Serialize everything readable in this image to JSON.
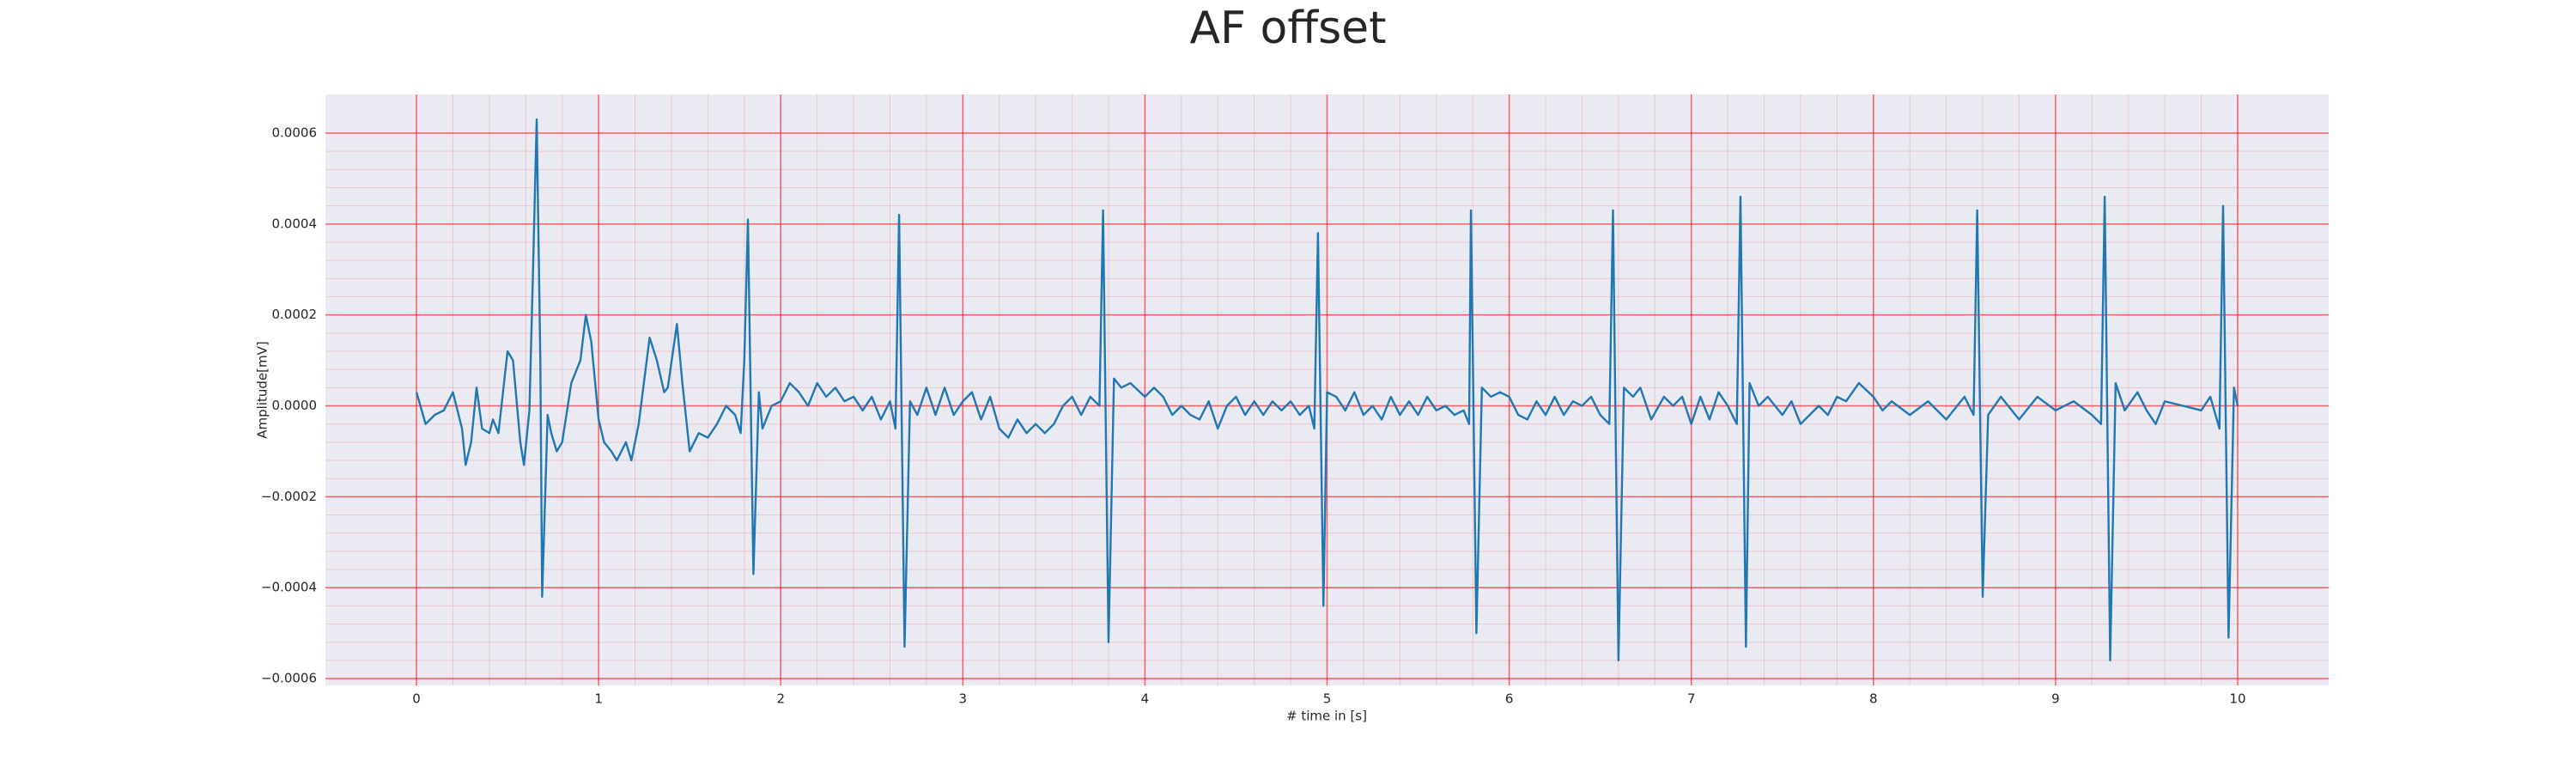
{
  "chart_data": {
    "type": "line",
    "title": "AF offset",
    "xlabel": "# time in [s]",
    "ylabel": "Amplitude[mV]",
    "x": [
      0,
      0.05,
      0.1,
      0.15,
      0.2,
      0.25,
      0.27,
      0.3,
      0.33,
      0.36,
      0.4,
      0.42,
      0.45,
      0.5,
      0.53,
      0.57,
      0.59,
      0.62,
      0.64,
      0.66,
      0.68,
      0.69,
      0.72,
      0.74,
      0.77,
      0.8,
      0.85,
      0.9,
      0.93,
      0.96,
      1.0,
      1.03,
      1.07,
      1.1,
      1.15,
      1.18,
      1.22,
      1.28,
      1.32,
      1.36,
      1.38,
      1.43,
      1.46,
      1.5,
      1.55,
      1.6,
      1.65,
      1.7,
      1.75,
      1.78,
      1.8,
      1.82,
      1.85,
      1.88,
      1.9,
      1.95,
      2.0,
      2.05,
      2.1,
      2.15,
      2.2,
      2.25,
      2.3,
      2.35,
      2.4,
      2.45,
      2.5,
      2.55,
      2.6,
      2.63,
      2.65,
      2.68,
      2.71,
      2.75,
      2.8,
      2.85,
      2.9,
      2.95,
      3.0,
      3.05,
      3.1,
      3.15,
      3.2,
      3.25,
      3.3,
      3.35,
      3.4,
      3.45,
      3.5,
      3.55,
      3.6,
      3.65,
      3.7,
      3.75,
      3.77,
      3.8,
      3.83,
      3.87,
      3.92,
      4.0,
      4.05,
      4.1,
      4.15,
      4.2,
      4.25,
      4.3,
      4.35,
      4.4,
      4.45,
      4.5,
      4.55,
      4.6,
      4.65,
      4.7,
      4.75,
      4.8,
      4.85,
      4.9,
      4.93,
      4.95,
      4.98,
      5.0,
      5.05,
      5.1,
      5.15,
      5.2,
      5.25,
      5.3,
      5.35,
      5.4,
      5.45,
      5.5,
      5.55,
      5.6,
      5.65,
      5.7,
      5.75,
      5.78,
      5.79,
      5.82,
      5.85,
      5.9,
      5.95,
      6.0,
      6.05,
      6.1,
      6.15,
      6.2,
      6.25,
      6.3,
      6.35,
      6.4,
      6.45,
      6.5,
      6.55,
      6.57,
      6.6,
      6.63,
      6.68,
      6.72,
      6.78,
      6.85,
      6.9,
      6.95,
      7.0,
      7.05,
      7.1,
      7.15,
      7.2,
      7.25,
      7.27,
      7.3,
      7.32,
      7.37,
      7.42,
      7.5,
      7.55,
      7.6,
      7.7,
      7.75,
      7.8,
      7.85,
      7.92,
      8.0,
      8.05,
      8.1,
      8.2,
      8.3,
      8.4,
      8.5,
      8.55,
      8.57,
      8.6,
      8.63,
      8.7,
      8.8,
      8.9,
      9.0,
      9.1,
      9.2,
      9.25,
      9.27,
      9.3,
      9.33,
      9.38,
      9.45,
      9.5,
      9.55,
      9.6,
      9.7,
      9.8,
      9.85,
      9.9,
      9.92,
      9.95,
      9.98,
      10.0
    ],
    "series": [
      {
        "color": "#1f77b4",
        "values": [
          3e-05,
          -4e-05,
          -2e-05,
          -1e-05,
          3e-05,
          -5e-05,
          -0.00013,
          -8e-05,
          4e-05,
          -5e-05,
          -6e-05,
          -3e-05,
          -6e-05,
          0.00012,
          0.0001,
          -8e-05,
          -0.00013,
          -1e-05,
          0.0003,
          0.00063,
          0.0001,
          -0.00042,
          -2e-05,
          -6e-05,
          -0.0001,
          -8e-05,
          5e-05,
          0.0001,
          0.0002,
          0.00014,
          -3e-05,
          -8e-05,
          -0.0001,
          -0.00012,
          -8e-05,
          -0.00012,
          -4e-05,
          0.00015,
          0.0001,
          3e-05,
          4e-05,
          0.00018,
          5e-05,
          -0.0001,
          -6e-05,
          -7e-05,
          -4e-05,
          0,
          -2e-05,
          -6e-05,
          0.0001,
          0.00041,
          -0.00037,
          3e-05,
          -5e-05,
          0,
          1e-05,
          5e-05,
          3e-05,
          0,
          5e-05,
          2e-05,
          4e-05,
          1e-05,
          2e-05,
          -1e-05,
          2e-05,
          -3e-05,
          1e-05,
          -5e-05,
          0.00042,
          -0.00053,
          1e-05,
          -2e-05,
          4e-05,
          -2e-05,
          4e-05,
          -2e-05,
          1e-05,
          3e-05,
          -3e-05,
          2e-05,
          -5e-05,
          -7e-05,
          -3e-05,
          -6e-05,
          -4e-05,
          -6e-05,
          -4e-05,
          0,
          2e-05,
          -2e-05,
          2e-05,
          0,
          0.00043,
          -0.00052,
          6e-05,
          4e-05,
          5e-05,
          2e-05,
          4e-05,
          2e-05,
          -2e-05,
          0,
          -2e-05,
          -3e-05,
          1e-05,
          -5e-05,
          0,
          2e-05,
          -2e-05,
          1e-05,
          -2e-05,
          1e-05,
          -1e-05,
          1e-05,
          -2e-05,
          0,
          -5e-05,
          0.00038,
          -0.00044,
          3e-05,
          2e-05,
          -1e-05,
          3e-05,
          -2e-05,
          0,
          -3e-05,
          2e-05,
          -2e-05,
          1e-05,
          -2e-05,
          2e-05,
          -1e-05,
          0,
          -2e-05,
          -1e-05,
          -4e-05,
          0.00043,
          -0.0005,
          4e-05,
          2e-05,
          3e-05,
          2e-05,
          -2e-05,
          -3e-05,
          1e-05,
          -2e-05,
          2e-05,
          -2e-05,
          1e-05,
          0,
          2e-05,
          -2e-05,
          -4e-05,
          0.00043,
          -0.00056,
          4e-05,
          2e-05,
          4e-05,
          -3e-05,
          2e-05,
          0,
          2e-05,
          -4e-05,
          2e-05,
          -3e-05,
          3e-05,
          0,
          -4e-05,
          0.00046,
          -0.00053,
          5e-05,
          0,
          2e-05,
          -2e-05,
          1e-05,
          -4e-05,
          0,
          -2e-05,
          2e-05,
          1e-05,
          5e-05,
          2e-05,
          -1e-05,
          1e-05,
          -2e-05,
          1e-05,
          -3e-05,
          2e-05,
          -2e-05,
          0.00043,
          -0.00042,
          -2e-05,
          2e-05,
          -3e-05,
          2e-05,
          -1e-05,
          1e-05,
          -2e-05,
          -4e-05,
          0.00046,
          -0.00056,
          5e-05,
          -1e-05,
          3e-05,
          -1e-05,
          -4e-05,
          1e-05,
          0,
          -1e-05,
          2e-05,
          -5e-05,
          0.00044,
          -0.00051,
          4e-05,
          0
        ]
      }
    ],
    "xlim": [
      -0.5,
      10.5
    ],
    "ylim": [
      -0.000615,
      0.000685
    ],
    "xticks": [
      0,
      1,
      2,
      3,
      4,
      5,
      6,
      7,
      8,
      9,
      10
    ],
    "yticks": [
      {
        "value": -0.0006,
        "label": "−0.0006"
      },
      {
        "value": -0.0004,
        "label": "−0.0004"
      },
      {
        "value": -0.0002,
        "label": "−0.0002"
      },
      {
        "value": 0,
        "label": "0.0000"
      },
      0.0002,
      0.0004,
      0.0006
    ],
    "grid": true,
    "grid_color": "#ff0000",
    "minor_grid": true,
    "background": "#eaeaf2"
  }
}
